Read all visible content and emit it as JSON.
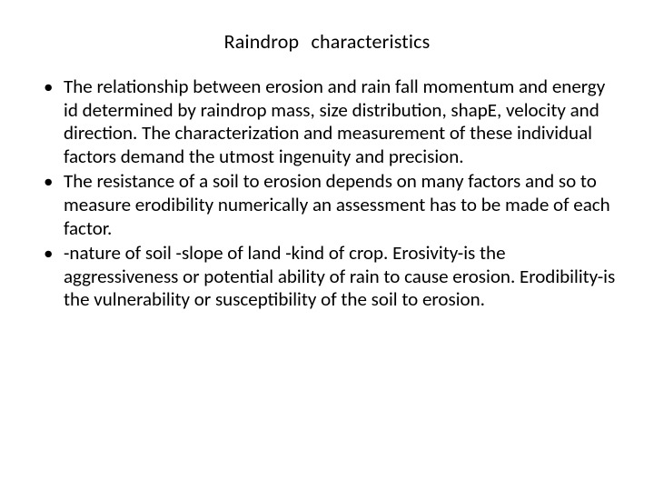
{
  "slide": {
    "title": "Raindrop   characteristics",
    "bullets": [
      "The relationship between erosion and rain fall momentum and energy id determined by raindrop mass, size distribution, shapE, velocity and  direction. The characterization and measurement of these individual factors demand the utmost ingenuity and precision.",
      "The resistance  of  a soil to erosion depends on many factors and so to measure erodibility numerically an assessment has  to be made of each factor.",
      "-nature of soil                                                                           -slope of land                                                                 -kind of crop.                 Erosivity-is the aggressiveness or potential ability of rain  to cause erosion.                                                               Erodibility-is the vulnerability or susceptibility of the soil to erosion."
    ]
  },
  "style": {
    "background_color": "#ffffff",
    "text_color": "#000000",
    "font_family": "Calibri",
    "title_fontsize": 22,
    "body_fontsize": 21,
    "line_height": 1.22,
    "bullet_glyph": "•"
  }
}
